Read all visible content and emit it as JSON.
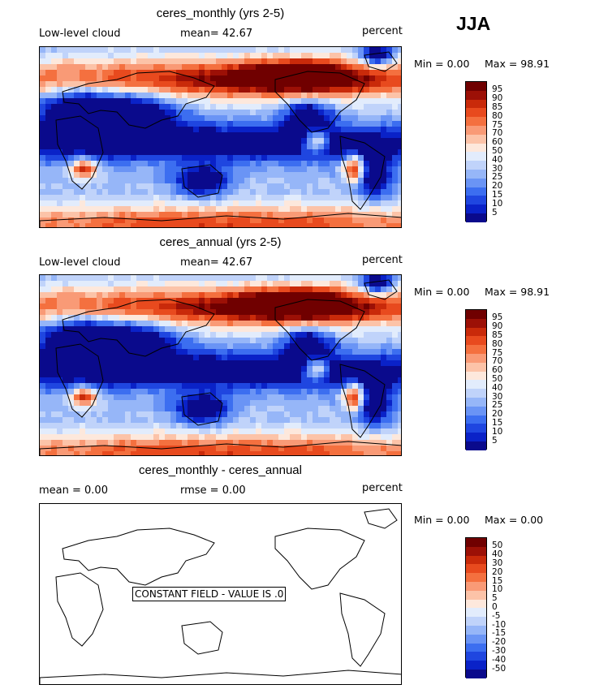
{
  "season": "JJA",
  "panels": [
    {
      "title": "ceres_monthly (yrs 2-5)",
      "left_label": "Low-level cloud",
      "center_label": "mean=  42.67",
      "units": "percent",
      "min_label": "Min =     0.00",
      "max_label": "Max =   98.91",
      "colorbar_labels": [
        "95",
        "90",
        "85",
        "80",
        "75",
        "70",
        "60",
        "50",
        "40",
        "30",
        "25",
        "20",
        "15",
        "10",
        "5"
      ],
      "map_type": "cloud"
    },
    {
      "title": "ceres_annual (yrs 2-5)",
      "left_label": "Low-level cloud",
      "center_label": "mean=  42.67",
      "units": "percent",
      "min_label": "Min =     0.00",
      "max_label": "Max =   98.91",
      "colorbar_labels": [
        "95",
        "90",
        "85",
        "80",
        "75",
        "70",
        "60",
        "50",
        "40",
        "30",
        "25",
        "20",
        "15",
        "10",
        "5"
      ],
      "map_type": "cloud"
    },
    {
      "title": "ceres_monthly - ceres_annual",
      "left_label": "mean =     0.00",
      "center_label": "rmse =     0.00",
      "units": "percent",
      "min_label": "Min =     0.00",
      "max_label": "Max =     0.00",
      "colorbar_labels": [
        "50",
        "40",
        "30",
        "20",
        "15",
        "10",
        "5",
        "0",
        "-5",
        "-10",
        "-15",
        "-20",
        "-30",
        "-40",
        "-50"
      ],
      "map_type": "blank",
      "note": "CONSTANT FIELD - VALUE IS .0"
    }
  ],
  "colors": {
    "scale": [
      "#0a0a8c",
      "#0a22c8",
      "#1f46e0",
      "#3c6ef0",
      "#6a94f5",
      "#96b6f8",
      "#c0d3fa",
      "#e2ecfc",
      "#fde8dc",
      "#fcc3a8",
      "#f99a76",
      "#f4703f",
      "#e84a1e",
      "#c92a0a",
      "#9c1006",
      "#700000"
    ]
  },
  "chart_data": [
    {
      "type": "heatmap",
      "title": "ceres_monthly (yrs 2-5)",
      "variable": "Low-level cloud",
      "units": "percent",
      "mean": 42.67,
      "min": 0.0,
      "max": 98.91,
      "contour_levels": [
        5,
        10,
        15,
        20,
        25,
        30,
        40,
        50,
        60,
        70,
        75,
        80,
        85,
        90,
        95
      ]
    },
    {
      "type": "heatmap",
      "title": "ceres_annual (yrs 2-5)",
      "variable": "Low-level cloud",
      "units": "percent",
      "mean": 42.67,
      "min": 0.0,
      "max": 98.91,
      "contour_levels": [
        5,
        10,
        15,
        20,
        25,
        30,
        40,
        50,
        60,
        70,
        75,
        80,
        85,
        90,
        95
      ]
    },
    {
      "type": "heatmap",
      "title": "ceres_monthly - ceres_annual",
      "units": "percent",
      "mean": 0.0,
      "rmse": 0.0,
      "min": 0.0,
      "max": 0.0,
      "contour_levels": [
        -50,
        -40,
        -30,
        -20,
        -15,
        -10,
        -5,
        0,
        5,
        10,
        15,
        20,
        30,
        40,
        50
      ],
      "constant_value": 0.0
    }
  ]
}
